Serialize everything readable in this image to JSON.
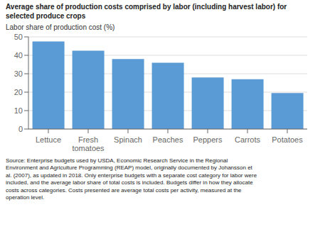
{
  "chart_data": {
    "type": "bar",
    "title": "Average share of production costs comprised by labor (including harvest labor) for\nselected produce crops",
    "ylabel": "Labor share of production cost (%)",
    "categories": [
      "Lettuce",
      "Fresh\ntomatoes",
      "Spinach",
      "Peaches",
      "Peppers",
      "Carrots",
      "Potatoes"
    ],
    "values": [
      47.5,
      42.5,
      38.0,
      36.0,
      28.0,
      27.0,
      19.5
    ],
    "color": "#5b9bd5",
    "ylim": [
      0,
      50
    ],
    "yticks": [
      0,
      10,
      20,
      30,
      40,
      50
    ],
    "grid": true,
    "annotations": [
      "Source: Enterprise budgets used by USDA, Economic Research Service in the Regional\nEnvironment and Agriculture Programming (REAP) model, originally documented by Johansson et\nal. (2007), as updated in 2018. Only enterprise budgets with a separate cost category for labor were\nincluded, and the average labor share of total costs is included. Budgets differ in how they allocate\ncosts across categories. Costs presented are average total costs per activity, measured at the\noperation level."
    ]
  }
}
